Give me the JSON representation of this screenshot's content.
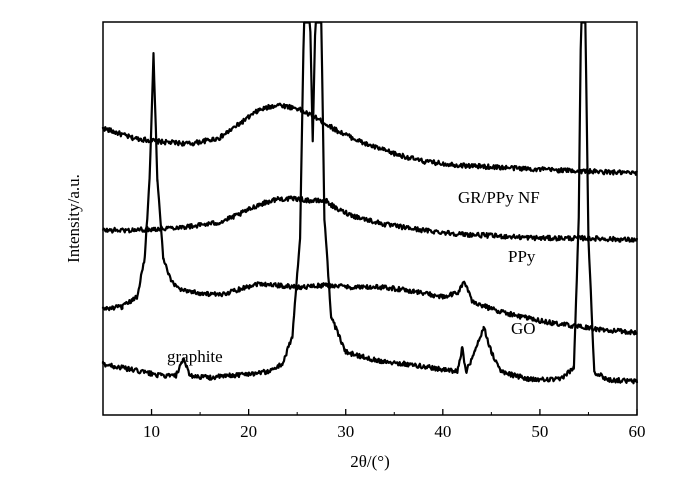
{
  "chart_data": {
    "type": "line",
    "title": "",
    "xlabel": "2θ/(°)",
    "ylabel": "Intensity/a.u.",
    "xlim": [
      5,
      60
    ],
    "x_ticks": [
      "10",
      "20",
      "30",
      "40",
      "50",
      "60"
    ],
    "y_ticks_labeled": false,
    "grid": false,
    "legend": "none",
    "line_color": "#000000",
    "series": [
      {
        "name": "GR/PPy NF",
        "points": [
          [
            5,
            0.73
          ],
          [
            8,
            0.705
          ],
          [
            11,
            0.695
          ],
          [
            14,
            0.69
          ],
          [
            17,
            0.705
          ],
          [
            19,
            0.74
          ],
          [
            21,
            0.775
          ],
          [
            23,
            0.79
          ],
          [
            25,
            0.78
          ],
          [
            27,
            0.755
          ],
          [
            29,
            0.725
          ],
          [
            32,
            0.69
          ],
          [
            35,
            0.665
          ],
          [
            38,
            0.645
          ],
          [
            42,
            0.635
          ],
          [
            46,
            0.63
          ],
          [
            50,
            0.625
          ],
          [
            55,
            0.62
          ],
          [
            60,
            0.615
          ]
        ]
      },
      {
        "name": "PPy",
        "points": [
          [
            5,
            0.47
          ],
          [
            8,
            0.47
          ],
          [
            11,
            0.475
          ],
          [
            14,
            0.48
          ],
          [
            17,
            0.49
          ],
          [
            19,
            0.51
          ],
          [
            21,
            0.535
          ],
          [
            23,
            0.55
          ],
          [
            25,
            0.55
          ],
          [
            26.5,
            0.545
          ],
          [
            28,
            0.545
          ],
          [
            29,
            0.525
          ],
          [
            31,
            0.505
          ],
          [
            34,
            0.485
          ],
          [
            38,
            0.47
          ],
          [
            42,
            0.46
          ],
          [
            46,
            0.455
          ],
          [
            50,
            0.45
          ],
          [
            55,
            0.45
          ],
          [
            60,
            0.445
          ]
        ]
      },
      {
        "name": "GO",
        "points": [
          [
            5,
            0.27
          ],
          [
            7,
            0.275
          ],
          [
            8.5,
            0.3
          ],
          [
            9.3,
            0.4
          ],
          [
            9.8,
            0.6
          ],
          [
            10.2,
            0.92
          ],
          [
            10.6,
            0.6
          ],
          [
            11.2,
            0.4
          ],
          [
            12,
            0.34
          ],
          [
            13,
            0.32
          ],
          [
            15,
            0.31
          ],
          [
            17,
            0.305
          ],
          [
            19,
            0.32
          ],
          [
            21,
            0.335
          ],
          [
            23,
            0.33
          ],
          [
            25,
            0.325
          ],
          [
            28,
            0.33
          ],
          [
            31,
            0.325
          ],
          [
            34,
            0.325
          ],
          [
            37,
            0.315
          ],
          [
            40,
            0.3
          ],
          [
            41.5,
            0.31
          ],
          [
            42.2,
            0.34
          ],
          [
            43,
            0.29
          ],
          [
            45,
            0.27
          ],
          [
            48,
            0.25
          ],
          [
            51,
            0.235
          ],
          [
            54,
            0.225
          ],
          [
            57,
            0.215
          ],
          [
            60,
            0.21
          ]
        ]
      },
      {
        "name": "graphite",
        "points": [
          [
            5,
            0.13
          ],
          [
            8,
            0.115
          ],
          [
            11,
            0.1
          ],
          [
            12.5,
            0.1
          ],
          [
            13.3,
            0.14
          ],
          [
            14,
            0.1
          ],
          [
            16,
            0.095
          ],
          [
            18,
            0.1
          ],
          [
            20,
            0.105
          ],
          [
            22,
            0.11
          ],
          [
            23.5,
            0.13
          ],
          [
            24.5,
            0.2
          ],
          [
            25.3,
            0.45
          ],
          [
            25.8,
            1.15
          ],
          [
            26.2,
            1.15
          ],
          [
            26.6,
            0.7
          ],
          [
            27,
            1.15
          ],
          [
            27.4,
            1.15
          ],
          [
            27.8,
            0.5
          ],
          [
            28.5,
            0.25
          ],
          [
            30,
            0.16
          ],
          [
            33,
            0.14
          ],
          [
            36,
            0.13
          ],
          [
            39,
            0.12
          ],
          [
            41.5,
            0.11
          ],
          [
            42,
            0.17
          ],
          [
            42.4,
            0.11
          ],
          [
            43.3,
            0.16
          ],
          [
            44.2,
            0.225
          ],
          [
            45,
            0.16
          ],
          [
            46,
            0.11
          ],
          [
            49,
            0.09
          ],
          [
            52,
            0.09
          ],
          [
            53.5,
            0.12
          ],
          [
            54,
            0.5
          ],
          [
            54.3,
            1.15
          ],
          [
            54.6,
            1.15
          ],
          [
            55,
            0.45
          ],
          [
            55.6,
            0.11
          ],
          [
            57,
            0.09
          ],
          [
            60,
            0.085
          ]
        ]
      }
    ]
  }
}
